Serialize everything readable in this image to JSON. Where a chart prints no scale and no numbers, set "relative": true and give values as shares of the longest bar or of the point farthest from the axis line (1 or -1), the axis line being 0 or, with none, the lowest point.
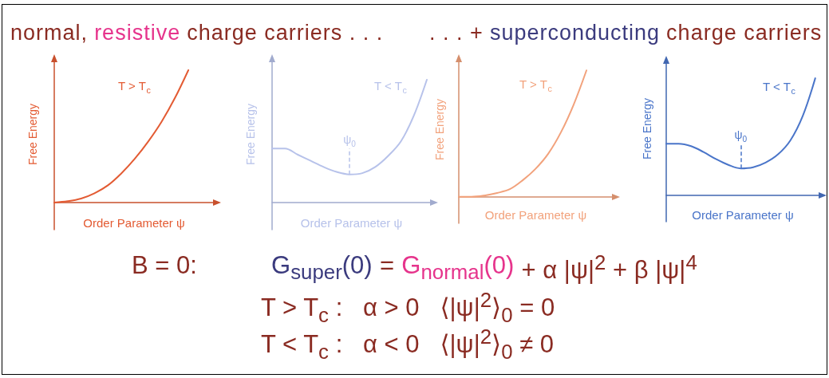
{
  "chart_data": [
    {
      "type": "other",
      "annotations": [
        "normal,",
        "resistive",
        "charge carriers . . .",
        ". . . +",
        "superconducting",
        "charge carriers"
      ]
    },
    {
      "type": "line",
      "title": "T > T$_{c}$",
      "xlabel": "Order Parameter ψ",
      "ylabel": "Free Energy",
      "relative": true,
      "marker": "none",
      "color": "#e35b33",
      "categories": [
        null,
        null,
        null,
        null,
        null,
        null,
        null,
        null,
        null,
        null,
        null
      ],
      "values": [
        0,
        0.01,
        0.03,
        0.07,
        0.13,
        0.22,
        0.33,
        0.46,
        0.61,
        0.79,
        1
      ]
    },
    {
      "type": "line",
      "title": "T < T$_{c}$",
      "xlabel": "Order Parameter ψ",
      "ylabel": "Free Energy",
      "relative": true,
      "marker": "none",
      "color": "#b7c2ea",
      "categories": [
        null,
        null,
        null,
        null,
        null,
        null,
        null,
        null,
        null,
        null,
        null,
        null,
        null
      ],
      "values": [
        0.44,
        0.44,
        0.39,
        0.34,
        0.29,
        0.25,
        0.23,
        0.24,
        0.29,
        0.38,
        0.5,
        0.71,
        1
      ],
      "annotations": [
        {
          "text": "ψ$_{0}$",
          "y": 0.23
        }
      ]
    },
    {
      "type": "line",
      "title": "T > T$_{c}$",
      "xlabel": "Order Parameter ψ",
      "ylabel": "Free Energy",
      "relative": true,
      "marker": "none",
      "color": "#f2a27c",
      "categories": [
        null,
        null,
        null,
        null,
        null,
        null,
        null,
        null,
        null,
        null,
        null
      ],
      "values": [
        0,
        0,
        0.01,
        0.03,
        0.06,
        0.13,
        0.22,
        0.34,
        0.51,
        0.73,
        1
      ]
    },
    {
      "type": "line",
      "title": "T < T$_{c}$",
      "xlabel": "Order Parameter ψ",
      "ylabel": "Free Energy",
      "relative": true,
      "marker": "none",
      "color": "#4a75c9",
      "categories": [
        null,
        null,
        null,
        null,
        null,
        null,
        null,
        null,
        null,
        null,
        null,
        null,
        null
      ],
      "values": [
        0.44,
        0.44,
        0.42,
        0.37,
        0.31,
        0.26,
        0.23,
        0.24,
        0.28,
        0.35,
        0.47,
        0.68,
        1
      ],
      "annotations": [
        {
          "text": "ψ$_{0}$",
          "y": 0.23
        }
      ]
    },
    {
      "type": "other",
      "annotations": [
        "B = 0:",
        "G$_{super}$(0)",
        "=",
        "G$_{normal}$(0)",
        "+ α |ψ|$^{2}$ + β |ψ|$^{4}$",
        "T > T$_{c}$ :   α > 0   ⟨|ψ|$^{2}$⟩$_{0}$ = 0",
        "T < T$_{c}$ :   α < 0   ⟨|ψ|$^{2}$⟩$_{0}$ ≠ 0"
      ]
    }
  ]
}
